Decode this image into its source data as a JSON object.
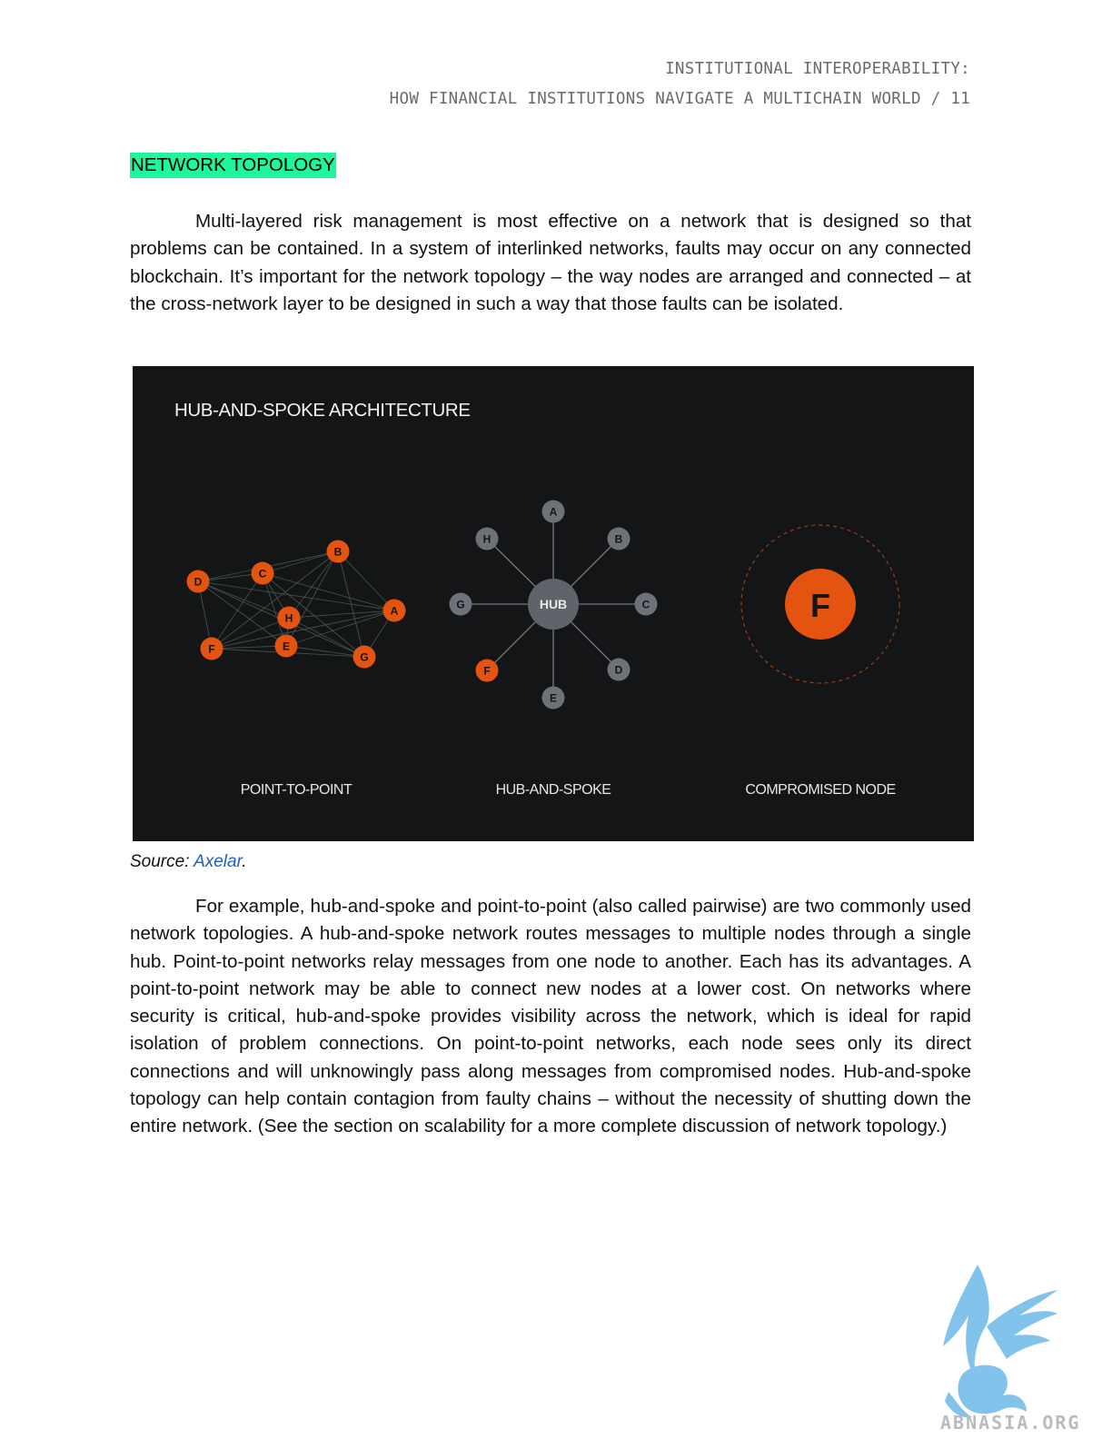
{
  "header": {
    "line1": "INSTITUTIONAL INTEROPERABILITY:",
    "line2": "HOW FINANCIAL INSTITUTIONS NAVIGATE A MULTICHAIN WORLD / 11"
  },
  "section": {
    "heading": "NETWORK TOPOLOGY",
    "paragraph1": "Multi-layered risk management is most effective on a network that is designed so that problems can be contained. In a system of interlinked networks, faults may occur on any connected blockchain. It’s important for the network topology – the way nodes are arranged and connected – at the cross-network layer to be designed in such a way that those faults can be isolated.",
    "paragraph2": "For example, hub-and-spoke and point-to-point (also called pairwise) are two commonly used network topologies. A hub-and-spoke network routes messages to multiple nodes through a single hub. Point-to-point networks relay messages from one node to another. Each has its advantages. A point-to-point network may be able to connect new nodes at a lower cost. On networks where security is critical, hub-and-spoke provides visibility across the network, which is ideal for rapid isolation of problem connections. On point-to-point networks, each node sees only its direct connections and will unknowingly pass along messages from compromised nodes. Hub-and-spoke topology can help contain contagion from faulty chains – without the necessity of shutting down the entire network. (See the section on scalability for a more complete discussion of network topology.)"
  },
  "figure": {
    "title": "HUB-AND-SPOKE ARCHITECTURE",
    "colors": {
      "background": "#141516",
      "node_orange": "#e4530f",
      "node_gray": "#6e7177",
      "hub_gray": "#5f636a",
      "link_lines": "#4a5a57"
    },
    "panels": [
      {
        "label": "POINT-TO-POINT",
        "nodes": [
          "A",
          "B",
          "C",
          "D",
          "E",
          "F",
          "G",
          "H"
        ],
        "all_nodes_compromised": true
      },
      {
        "label": "HUB-AND-SPOKE",
        "hub_label": "HUB",
        "nodes": [
          "A",
          "B",
          "C",
          "D",
          "E",
          "F",
          "G",
          "H"
        ],
        "compromised_node": "F"
      },
      {
        "label": "COMPROMISED NODE",
        "isolated_node": "F"
      }
    ]
  },
  "caption": {
    "prefix": "Source: ",
    "link_text": "Axelar",
    "suffix": "."
  },
  "watermark": {
    "text": "ABNASIA.ORG"
  }
}
